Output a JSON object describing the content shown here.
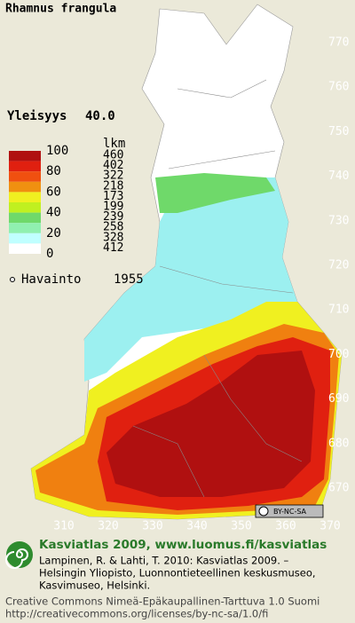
{
  "title": "Rhamnus frangula",
  "frequency": {
    "label": "Yleisyys",
    "value": "40.0"
  },
  "legend": {
    "scale": [
      "100",
      "80",
      "60",
      "40",
      "20",
      "0"
    ],
    "count_header": "lkm",
    "counts": [
      "460",
      "402",
      "322",
      "218",
      "173",
      "199",
      "239",
      "258",
      "328",
      "412"
    ]
  },
  "observation": {
    "label": "Havainto",
    "year": "1955"
  },
  "grid_labels": {
    "northing": [
      "770",
      "760",
      "750",
      "740",
      "730",
      "720",
      "710",
      "700",
      "690",
      "680",
      "670"
    ],
    "easting": [
      "310",
      "320",
      "330",
      "340",
      "350",
      "360",
      "370"
    ]
  },
  "license_badge": "BY-NC-SA",
  "footer": {
    "heading": "Kasviatlas 2009, www.luomus.fi/kasviatlas",
    "citation": [
      "Lampinen, R. & Lahti, T. 2010: Kasviatlas 2009. –",
      "Helsingin Yliopisto, Luonnontieteellinen keskusmuseo,",
      "Kasvimuseo, Helsinki."
    ],
    "license": [
      "Creative Commons Nimeä-Epäkaupallinen-Tarttuva 1.0 Suomi",
      "http://creativecommons.org/licenses/by-nc-sa/1.0/fi"
    ]
  }
}
